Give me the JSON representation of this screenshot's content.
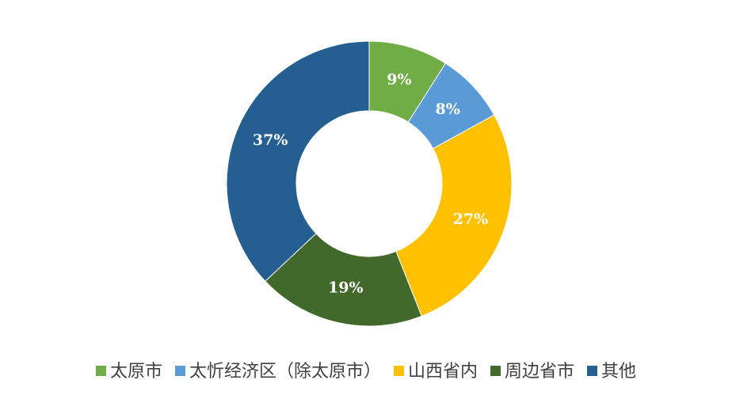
{
  "chart_data": {
    "type": "doughnut",
    "categories": [
      "太原市",
      "太忻经济区（除太原市）",
      "山西省内",
      "周边省市",
      "其他"
    ],
    "values": [
      9,
      8,
      27,
      19,
      37
    ],
    "value_labels": [
      "9%",
      "8%",
      "27%",
      "19%",
      "37%"
    ],
    "colors": [
      "#70ad47",
      "#5b9bd5",
      "#ffc000",
      "#43682b",
      "#255e91"
    ],
    "legend": "bottom"
  }
}
